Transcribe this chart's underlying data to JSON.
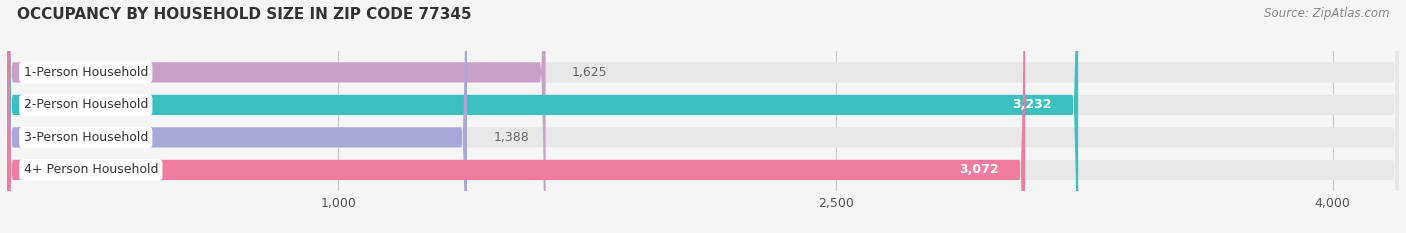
{
  "title": "OCCUPANCY BY HOUSEHOLD SIZE IN ZIP CODE 77345",
  "source": "Source: ZipAtlas.com",
  "categories": [
    "1-Person Household",
    "2-Person Household",
    "3-Person Household",
    "4+ Person Household"
  ],
  "values": [
    1625,
    3232,
    1388,
    3072
  ],
  "bar_colors": [
    "#c9a0c8",
    "#3bbfbf",
    "#a8a8d8",
    "#f07ca0"
  ],
  "bar_bg_color": "#e8e8e8",
  "x_ticks": [
    1000,
    2500,
    4000
  ],
  "x_min": 0,
  "x_max": 4200,
  "label_color_inside": "#ffffff",
  "label_color_outside": "#666666",
  "background_color": "#f5f5f5",
  "bar_height": 0.62,
  "title_color": "#333333",
  "source_color": "#888888",
  "grid_color": "#cccccc",
  "label_box_color": "#ffffff"
}
